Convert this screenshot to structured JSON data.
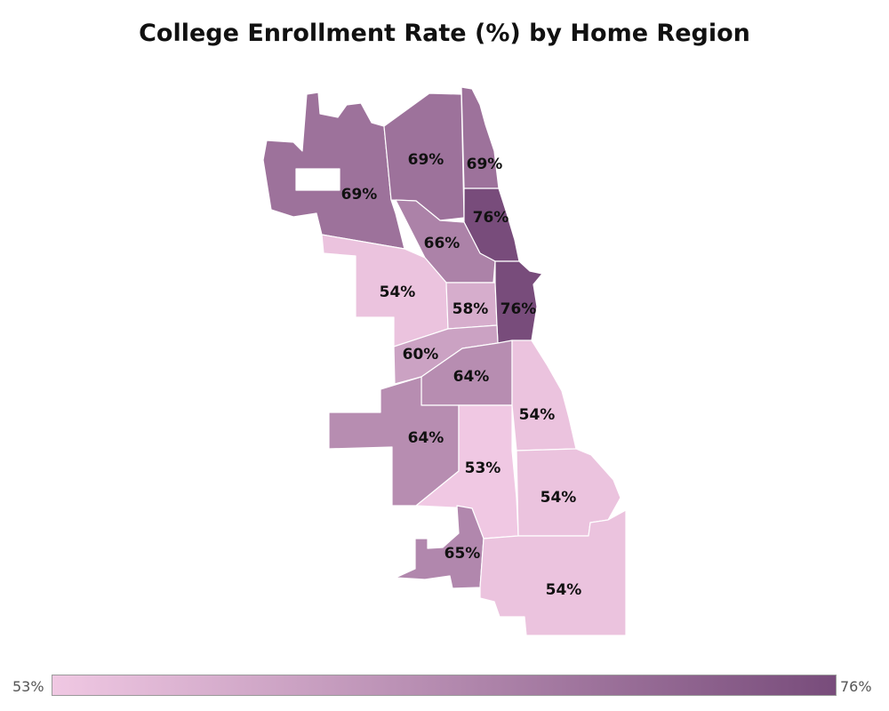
{
  "title": "College Enrollment Rate (%) by Home Region",
  "color_scale": {
    "min_color": "#f0c8e3",
    "max_color": "#784c7b"
  },
  "legend": {
    "min_label": "53%",
    "max_label": "76%",
    "min_value": 53,
    "max_value": 76
  },
  "regions": [
    {
      "id": "far-northwest",
      "value": 69,
      "label": "69%"
    },
    {
      "id": "north",
      "value": 69,
      "label": "69%"
    },
    {
      "id": "far-north-lakefront",
      "value": 69,
      "label": "69%"
    },
    {
      "id": "north-lakefront",
      "value": 76,
      "label": "76%"
    },
    {
      "id": "northwest",
      "value": 66,
      "label": "66%"
    },
    {
      "id": "west",
      "value": 54,
      "label": "54%"
    },
    {
      "id": "near-west",
      "value": 58,
      "label": "58%"
    },
    {
      "id": "central",
      "value": 76,
      "label": "76%"
    },
    {
      "id": "southwest-inner",
      "value": 60,
      "label": "60%"
    },
    {
      "id": "south-central",
      "value": 64,
      "label": "64%"
    },
    {
      "id": "southwest",
      "value": 64,
      "label": "64%"
    },
    {
      "id": "south-side",
      "value": 53,
      "label": "53%"
    },
    {
      "id": "south-lakefront",
      "value": 54,
      "label": "54%"
    },
    {
      "id": "far-southeast-upper",
      "value": 54,
      "label": "54%"
    },
    {
      "id": "far-southwest",
      "value": 65,
      "label": "65%"
    },
    {
      "id": "far-south",
      "value": 54,
      "label": "54%"
    }
  ]
}
